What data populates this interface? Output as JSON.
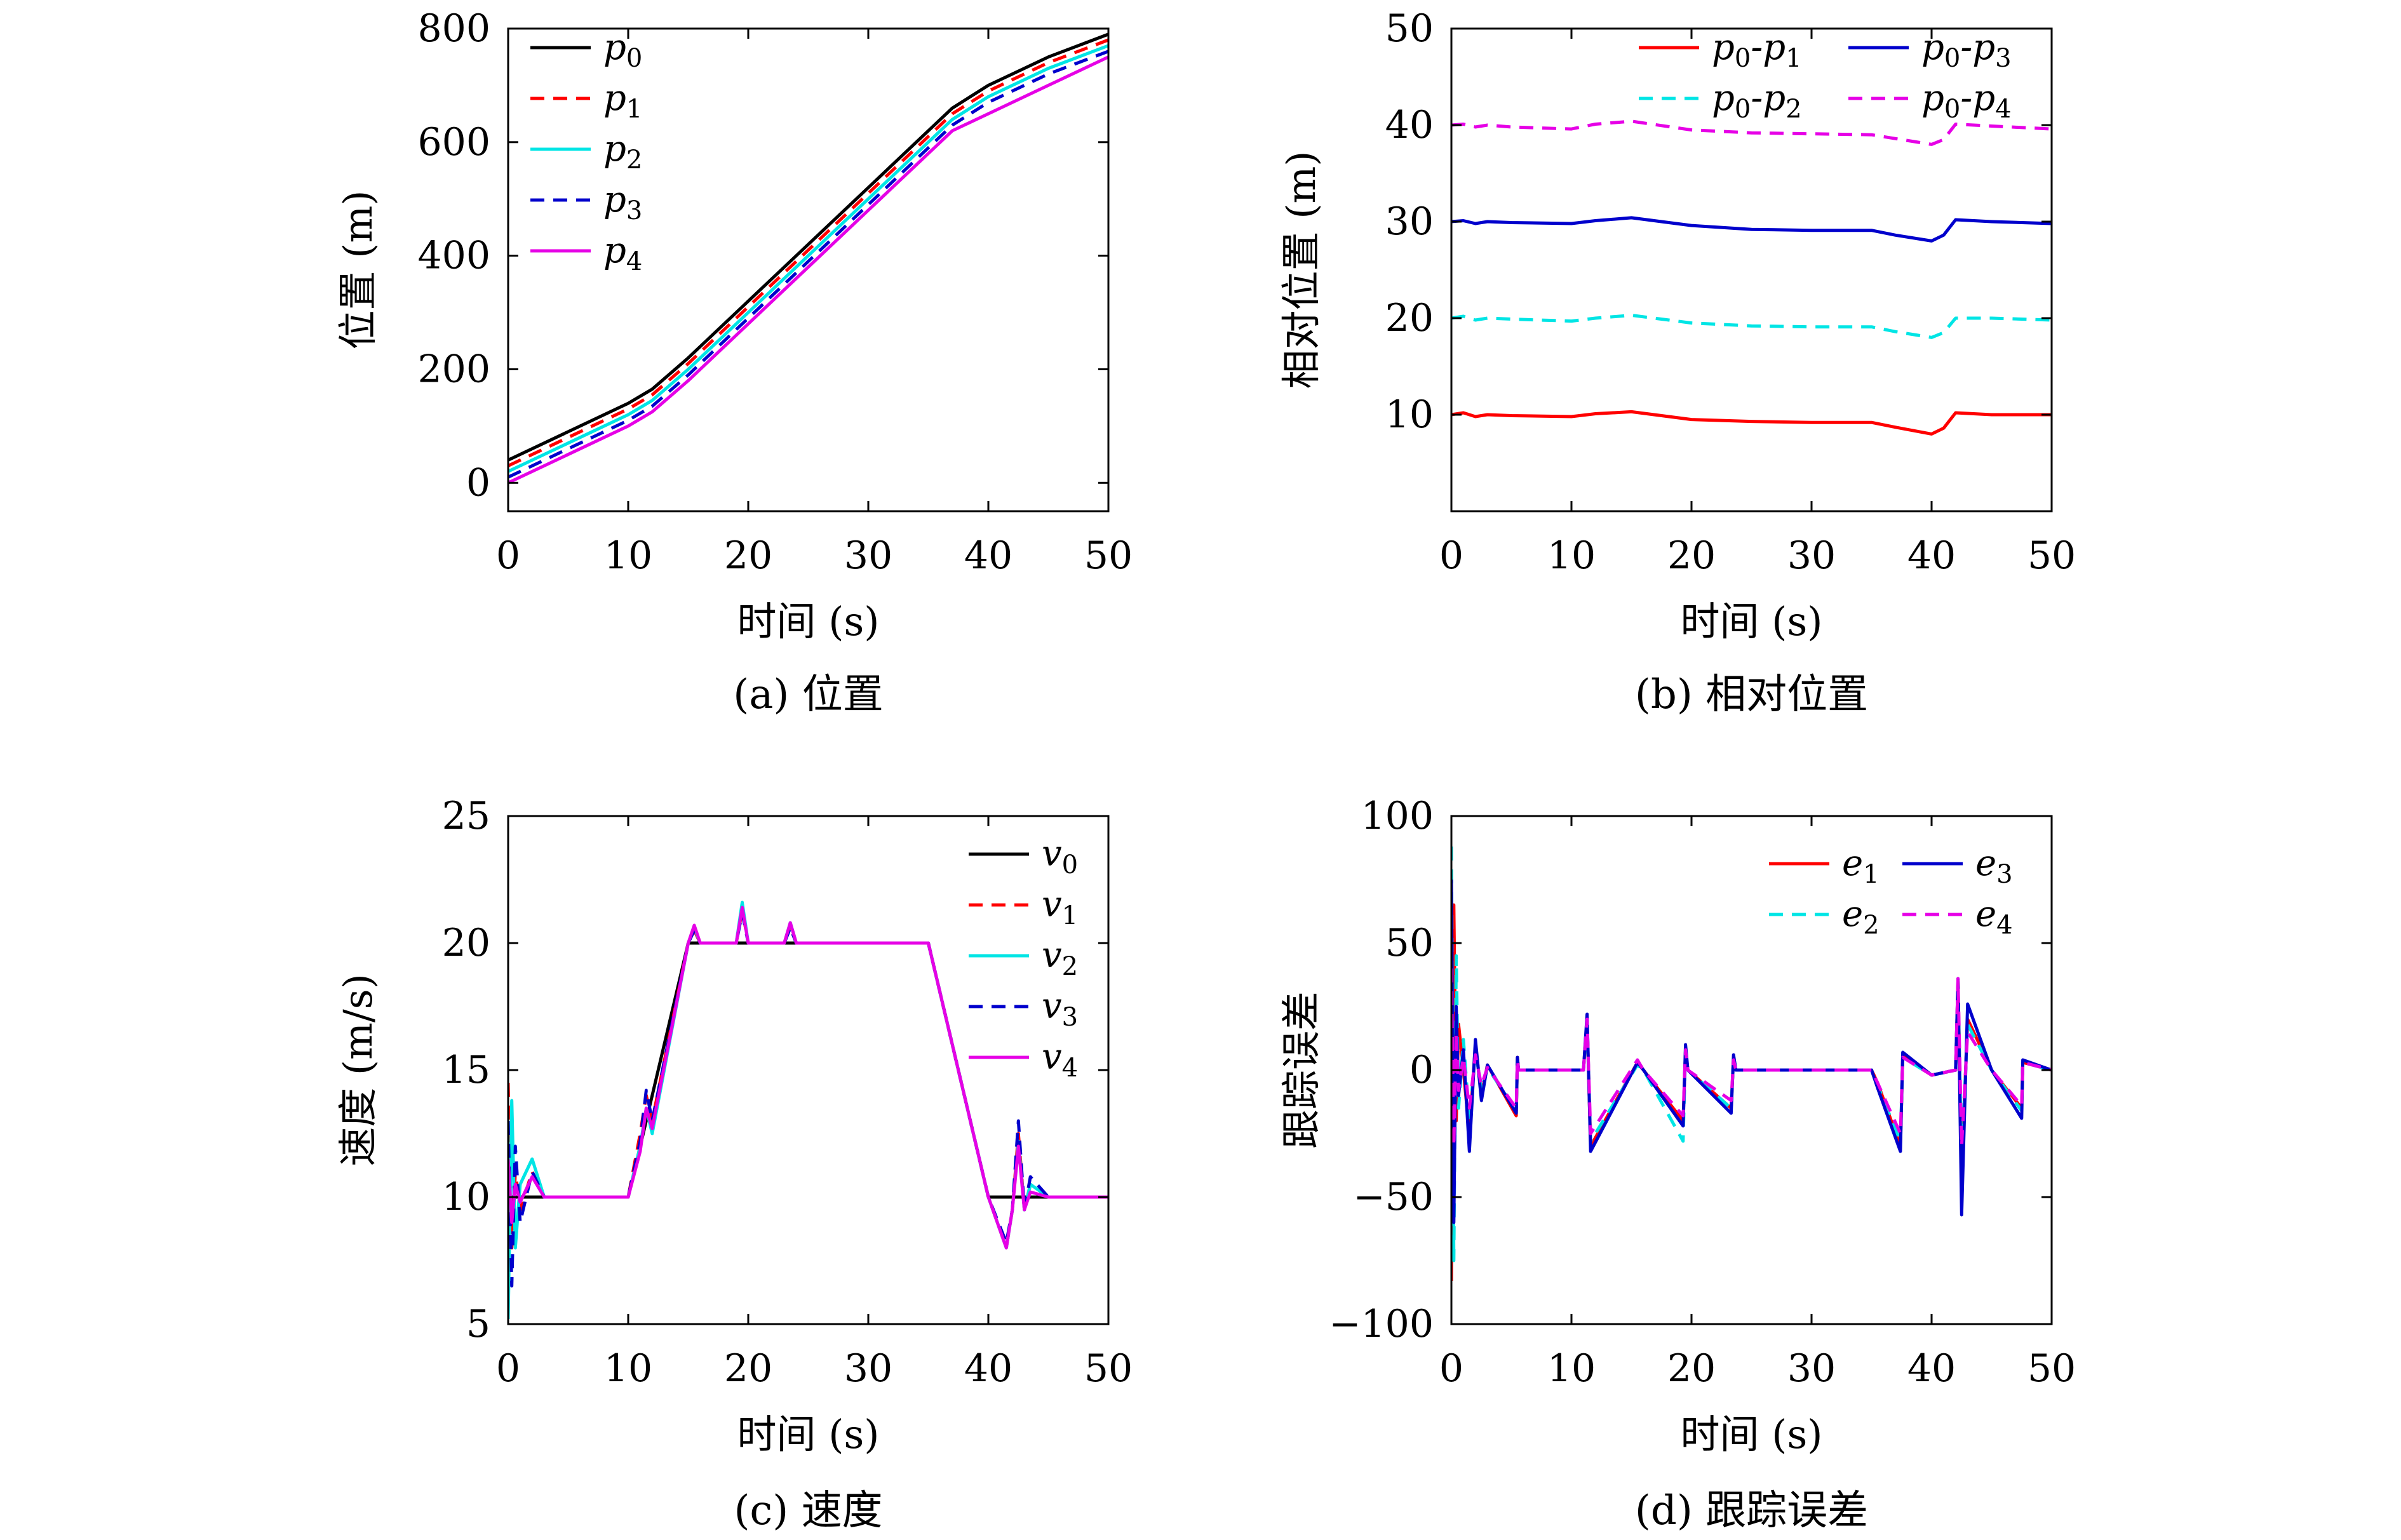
{
  "chart_data": [
    {
      "id": "a",
      "type": "line",
      "caption": "(a) 位置",
      "xlabel": "时间 (s)",
      "ylabel": "位置 (m)",
      "xlim": [
        0,
        50
      ],
      "ylim": [
        -50,
        800
      ],
      "xticks": [
        0,
        10,
        20,
        30,
        40,
        50
      ],
      "yticks": [
        0,
        200,
        400,
        600,
        800
      ],
      "grid": false,
      "legend_position": "top-left",
      "series": [
        {
          "name": "p0",
          "label_main": "p",
          "label_sub": "0",
          "color": "#000000",
          "dash": "solid",
          "x": [
            0,
            10,
            12,
            15,
            20,
            25,
            30,
            35,
            37,
            40,
            45,
            50
          ],
          "y": [
            40,
            140,
            165,
            220,
            320,
            420,
            520,
            620,
            660,
            700,
            750,
            790
          ]
        },
        {
          "name": "p1",
          "label_main": "p",
          "label_sub": "1",
          "color": "#ff0000",
          "dash": "dashed",
          "x": [
            0,
            10,
            12,
            15,
            20,
            25,
            30,
            35,
            37,
            40,
            45,
            50
          ],
          "y": [
            30,
            130,
            155,
            210,
            310,
            410,
            510,
            610,
            650,
            690,
            740,
            780
          ]
        },
        {
          "name": "p2",
          "label_main": "p",
          "label_sub": "2",
          "color": "#00e5e5",
          "dash": "solid",
          "x": [
            0,
            10,
            12,
            15,
            20,
            25,
            30,
            35,
            37,
            40,
            45,
            50
          ],
          "y": [
            20,
            120,
            145,
            200,
            300,
            400,
            500,
            600,
            640,
            680,
            730,
            770
          ]
        },
        {
          "name": "p3",
          "label_main": "p",
          "label_sub": "3",
          "color": "#0000cc",
          "dash": "dashed",
          "x": [
            0,
            10,
            12,
            15,
            20,
            25,
            30,
            35,
            37,
            40,
            45,
            50
          ],
          "y": [
            10,
            110,
            135,
            190,
            290,
            390,
            490,
            590,
            630,
            670,
            720,
            760
          ]
        },
        {
          "name": "p4",
          "label_main": "p",
          "label_sub": "4",
          "color": "#e600e6",
          "dash": "solid",
          "x": [
            0,
            10,
            12,
            15,
            20,
            25,
            30,
            35,
            37,
            40,
            45,
            50
          ],
          "y": [
            0,
            100,
            125,
            180,
            280,
            380,
            480,
            580,
            620,
            650,
            700,
            750
          ]
        }
      ]
    },
    {
      "id": "b",
      "type": "line",
      "caption": "(b) 相对位置",
      "xlabel": "时间 (s)",
      "ylabel": "相对位置 (m)",
      "xlim": [
        0,
        50
      ],
      "ylim": [
        0,
        50
      ],
      "xticks": [
        0,
        10,
        20,
        30,
        40,
        50
      ],
      "yticks": [
        10,
        20,
        30,
        40,
        50
      ],
      "grid": false,
      "legend_position": "top-right",
      "series": [
        {
          "name": "p0-p1",
          "label_parts": [
            "p",
            "0",
            "-p",
            "1"
          ],
          "color": "#ff0000",
          "dash": "solid",
          "x": [
            0,
            1,
            2,
            3,
            5,
            10,
            12,
            15,
            20,
            25,
            30,
            35,
            37,
            40,
            41,
            42,
            45,
            50
          ],
          "y": [
            10,
            10.2,
            9.8,
            10,
            9.9,
            9.8,
            10.1,
            10.3,
            9.5,
            9.3,
            9.2,
            9.2,
            8.7,
            8.0,
            8.6,
            10.2,
            10,
            10
          ]
        },
        {
          "name": "p0-p2",
          "label_parts": [
            "p",
            "0",
            "-p",
            "2"
          ],
          "color": "#00e5e5",
          "dash": "dashed",
          "x": [
            0,
            1,
            2,
            3,
            5,
            10,
            12,
            15,
            20,
            25,
            30,
            35,
            37,
            40,
            41,
            42,
            45,
            50
          ],
          "y": [
            20,
            20.2,
            19.8,
            20,
            19.9,
            19.7,
            20,
            20.3,
            19.5,
            19.2,
            19.1,
            19.1,
            18.6,
            18.0,
            18.5,
            20,
            20,
            19.8
          ]
        },
        {
          "name": "p0-p3",
          "label_parts": [
            "p",
            "0",
            "-p",
            "3"
          ],
          "color": "#0000cc",
          "dash": "solid",
          "x": [
            0,
            1,
            2,
            3,
            5,
            10,
            12,
            15,
            20,
            25,
            30,
            35,
            37,
            40,
            41,
            42,
            45,
            50
          ],
          "y": [
            30,
            30.1,
            29.8,
            30,
            29.9,
            29.8,
            30.1,
            30.4,
            29.6,
            29.2,
            29.1,
            29.1,
            28.6,
            28.0,
            28.6,
            30.2,
            30,
            29.8
          ]
        },
        {
          "name": "p0-p4",
          "label_parts": [
            "p",
            "0",
            "-p",
            "4"
          ],
          "color": "#e600e6",
          "dash": "dashed",
          "x": [
            0,
            1,
            2,
            3,
            5,
            10,
            12,
            15,
            20,
            25,
            30,
            35,
            37,
            40,
            41,
            42,
            45,
            50
          ],
          "y": [
            40,
            40.1,
            39.8,
            40,
            39.8,
            39.6,
            40.1,
            40.4,
            39.5,
            39.2,
            39.1,
            39.0,
            38.6,
            38.0,
            38.5,
            40.1,
            39.9,
            39.6
          ]
        }
      ]
    },
    {
      "id": "c",
      "type": "line",
      "caption": "(c) 速度",
      "xlabel": "时间 (s)",
      "ylabel": "速度 (m/s)",
      "xlim": [
        0,
        50
      ],
      "ylim": [
        5,
        25
      ],
      "xticks": [
        0,
        10,
        20,
        30,
        40,
        50
      ],
      "yticks": [
        5,
        10,
        15,
        20,
        25
      ],
      "grid": false,
      "legend_position": "top-right",
      "series": [
        {
          "name": "v0",
          "label_main": "v",
          "label_sub": "0",
          "color": "#000000",
          "dash": "solid",
          "x": [
            0,
            10,
            15,
            35,
            40,
            50
          ],
          "y": [
            10,
            10,
            20,
            20,
            10,
            10
          ]
        },
        {
          "name": "v1",
          "label_main": "v",
          "label_sub": "1",
          "color": "#ff0000",
          "dash": "dashed",
          "x": [
            0,
            0.3,
            0.6,
            1,
            2,
            3,
            5,
            10,
            11,
            11.5,
            12,
            15,
            15.5,
            16,
            19,
            19.5,
            20,
            23,
            23.5,
            24,
            35,
            37,
            40,
            41.5,
            42,
            42.5,
            43,
            43.5,
            45,
            47,
            48,
            50
          ],
          "y": [
            14.5,
            8,
            11,
            9.5,
            11,
            10,
            10,
            10,
            12.5,
            14,
            13,
            20,
            20.5,
            20,
            20,
            21.3,
            20,
            20,
            20.7,
            20,
            20,
            16,
            10,
            8,
            9.5,
            12.5,
            9.5,
            10.5,
            10,
            10,
            10,
            10
          ]
        },
        {
          "name": "v2",
          "label_main": "v",
          "label_sub": "2",
          "color": "#00e5e5",
          "dash": "solid",
          "x": [
            0,
            0.3,
            0.6,
            1,
            2,
            3,
            5,
            10,
            11,
            11.5,
            12,
            15,
            15.5,
            16,
            19,
            19.5,
            20,
            23,
            23.5,
            24,
            35,
            37,
            40,
            41.5,
            42,
            42.5,
            43,
            43.5,
            45,
            47,
            48,
            50
          ],
          "y": [
            5.2,
            13.8,
            8,
            10.5,
            11.5,
            10,
            10,
            10,
            12,
            13.5,
            12.5,
            20,
            20.6,
            20,
            20,
            21.6,
            20,
            20,
            20.8,
            20,
            20,
            16,
            10,
            8,
            9.5,
            12.2,
            9.5,
            10.5,
            10,
            10,
            10,
            10
          ]
        },
        {
          "name": "v3",
          "label_main": "v",
          "label_sub": "3",
          "color": "#0000cc",
          "dash": "dashed",
          "x": [
            0,
            0.3,
            0.6,
            1,
            2,
            3,
            5,
            10,
            11,
            11.5,
            12,
            15,
            15.5,
            16,
            19,
            19.5,
            20,
            23,
            23.5,
            24,
            35,
            37,
            40,
            41.5,
            42,
            42.5,
            43,
            43.5,
            45,
            47,
            48,
            50
          ],
          "y": [
            13,
            6.5,
            12,
            9,
            11,
            10,
            10,
            10,
            12.2,
            14.2,
            13,
            20,
            20.5,
            20,
            20,
            21.2,
            20,
            20,
            20.6,
            20,
            20,
            16,
            10,
            8.2,
            9.5,
            13,
            9.5,
            10.8,
            10,
            10,
            10,
            10
          ]
        },
        {
          "name": "v4",
          "label_main": "v",
          "label_sub": "4",
          "color": "#e600e6",
          "dash": "solid",
          "x": [
            0,
            0.3,
            0.6,
            1,
            2,
            3,
            5,
            10,
            11,
            11.5,
            12,
            15,
            15.5,
            16,
            19,
            19.5,
            20,
            23,
            23.5,
            24,
            35,
            37,
            40,
            41.5,
            42,
            42.5,
            43,
            43.5,
            45,
            47,
            48,
            50
          ],
          "y": [
            11.5,
            9,
            10.5,
            9.8,
            10.8,
            10,
            10,
            10,
            11.8,
            13.5,
            12.7,
            20,
            20.7,
            20,
            20,
            21.4,
            20,
            20,
            20.8,
            20,
            20,
            16,
            10,
            8,
            9.5,
            12,
            9.5,
            10.2,
            10,
            10,
            10,
            10
          ]
        }
      ]
    },
    {
      "id": "d",
      "type": "line",
      "caption": "(d) 跟踪误差",
      "xlabel": "时间 (s)",
      "ylabel": "跟踪误差",
      "xlim": [
        0,
        50
      ],
      "ylim": [
        -100,
        100
      ],
      "xticks": [
        0,
        10,
        20,
        30,
        40,
        50
      ],
      "yticks": [
        -100,
        -50,
        0,
        50,
        100
      ],
      "grid": false,
      "legend_position": "top-right",
      "series": [
        {
          "name": "e1",
          "label_main": "e",
          "label_sub": "1",
          "color": "#ff0000",
          "dash": "solid",
          "x": [
            0,
            0.2,
            0.4,
            0.6,
            1,
            1.5,
            2,
            2.5,
            3,
            5.4,
            5.5,
            5.6,
            11,
            11.3,
            11.6,
            15.5,
            16,
            19.3,
            19.5,
            19.7,
            23.3,
            23.5,
            23.7,
            35,
            35.5,
            37.4,
            37.6,
            40,
            42,
            42.2,
            42.5,
            43,
            45,
            47.5,
            47.6,
            50
          ],
          "y": [
            -83,
            65,
            -20,
            18,
            0,
            -25,
            10,
            -10,
            2,
            -18,
            5,
            0,
            0,
            20,
            -30,
            3,
            0,
            -20,
            8,
            0,
            -15,
            5,
            0,
            0,
            -5,
            -30,
            6,
            -2,
            0,
            35,
            -40,
            20,
            0,
            -15,
            3,
            0
          ]
        },
        {
          "name": "e2",
          "label_main": "e",
          "label_sub": "2",
          "color": "#00e5e5",
          "dash": "dashed",
          "x": [
            0,
            0.2,
            0.4,
            0.6,
            1,
            1.5,
            2,
            2.5,
            3,
            5.4,
            5.5,
            5.6,
            11,
            11.3,
            11.6,
            15.5,
            16,
            19.3,
            19.5,
            19.7,
            23.3,
            23.5,
            23.7,
            35,
            35.5,
            37.4,
            37.6,
            40,
            42,
            42.2,
            42.5,
            43,
            45,
            47.5,
            47.6,
            50
          ],
          "y": [
            88,
            -75,
            45,
            -15,
            12,
            -20,
            8,
            -8,
            1,
            -16,
            4,
            0,
            0,
            18,
            -28,
            2,
            0,
            -28,
            8,
            0,
            -15,
            5,
            0,
            0,
            -6,
            -28,
            5,
            -2,
            0,
            32,
            -35,
            18,
            0,
            -16,
            3,
            0
          ]
        },
        {
          "name": "e3",
          "label_main": "e",
          "label_sub": "3",
          "color": "#0000cc",
          "dash": "solid",
          "x": [
            0,
            0.2,
            0.4,
            0.6,
            1,
            1.5,
            2,
            2.5,
            3,
            5.4,
            5.5,
            5.6,
            11,
            11.3,
            11.6,
            15.5,
            16,
            19.3,
            19.5,
            19.7,
            23.3,
            23.5,
            23.7,
            35,
            35.5,
            37.4,
            37.6,
            40,
            42,
            42.2,
            42.5,
            43,
            45,
            47.5,
            47.6,
            50
          ],
          "y": [
            75,
            -60,
            25,
            -10,
            8,
            -32,
            12,
            -12,
            2,
            -17,
            5,
            0,
            0,
            22,
            -32,
            3,
            0,
            -22,
            10,
            0,
            -17,
            6,
            0,
            0,
            -7,
            -32,
            7,
            -2,
            0,
            36,
            -57,
            26,
            0,
            -19,
            4,
            0
          ]
        },
        {
          "name": "e4",
          "label_main": "e",
          "label_sub": "4",
          "color": "#e600e6",
          "dash": "dashed",
          "x": [
            0,
            0.2,
            0.4,
            0.6,
            1,
            1.5,
            2,
            2.5,
            3,
            5.4,
            5.5,
            5.6,
            11,
            11.3,
            11.6,
            15.5,
            16,
            19.3,
            19.5,
            19.7,
            23.3,
            23.5,
            23.7,
            35,
            35.5,
            37.4,
            37.6,
            40,
            42,
            42.2,
            42.5,
            43,
            45,
            47.5,
            47.6,
            50
          ],
          "y": [
            40,
            -30,
            15,
            -8,
            5,
            -15,
            6,
            -6,
            1,
            -15,
            4,
            0,
            0,
            20,
            -25,
            4,
            0,
            -18,
            8,
            0,
            -12,
            4,
            0,
            0,
            -5,
            -25,
            5,
            -2,
            0,
            36,
            -30,
            15,
            0,
            -14,
            3,
            0
          ]
        }
      ]
    }
  ]
}
